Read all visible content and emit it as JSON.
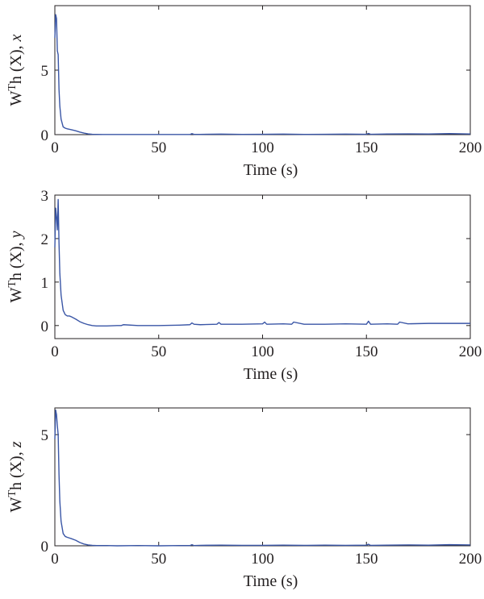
{
  "chart_data": [
    {
      "type": "line",
      "title": "",
      "xlabel": "Time (s)",
      "ylabel": {
        "base": "W",
        "sup": "T",
        "mid": "h (X), ",
        "var": "x"
      },
      "xlim": [
        0,
        200
      ],
      "ylim": [
        0,
        10
      ],
      "xticks": [
        0,
        50,
        100,
        150,
        200
      ],
      "yticks": [
        0,
        5
      ],
      "grid": false,
      "color": "#3a56a6",
      "series": [
        {
          "x": [
            0,
            0.4,
            0.8,
            1.2,
            1.6,
            2.0,
            2.4,
            3,
            4,
            5,
            6,
            8,
            10,
            12,
            14,
            16,
            18,
            20,
            25,
            30,
            40,
            50,
            60,
            65,
            66,
            67,
            70,
            80,
            90,
            100,
            110,
            120,
            130,
            140,
            150,
            151,
            152,
            160,
            170,
            180,
            190,
            200
          ],
          "y": [
            7.5,
            9.3,
            9.0,
            6.5,
            6.2,
            3.5,
            2.2,
            1.2,
            0.6,
            0.5,
            0.45,
            0.38,
            0.3,
            0.2,
            0.12,
            0.06,
            0.03,
            0.02,
            0.01,
            0.01,
            0.01,
            0.01,
            0.01,
            0.01,
            0.08,
            0.02,
            0.02,
            0.04,
            0.02,
            0.03,
            0.04,
            0.02,
            0.03,
            0.04,
            0.03,
            0.09,
            0.03,
            0.05,
            0.06,
            0.05,
            0.08,
            0.05
          ]
        }
      ]
    },
    {
      "type": "line",
      "title": "",
      "xlabel": "Time (s)",
      "ylabel": {
        "base": "W",
        "sup": "T",
        "mid": "h (X), ",
        "var": "y"
      },
      "xlim": [
        0,
        200
      ],
      "ylim": [
        -0.3,
        3
      ],
      "xticks": [
        0,
        50,
        100,
        150,
        200
      ],
      "yticks": [
        0,
        1,
        2,
        3
      ],
      "grid": false,
      "color": "#3a56a6",
      "series": [
        {
          "x": [
            0,
            0.4,
            0.8,
            1.2,
            1.6,
            2.0,
            2.4,
            3,
            4,
            5,
            6,
            7,
            8,
            10,
            12,
            14,
            16,
            18,
            20,
            25,
            30,
            32,
            33,
            40,
            50,
            60,
            65,
            66,
            67,
            70,
            78,
            79,
            80,
            90,
            100,
            101,
            102,
            110,
            114,
            115,
            120,
            130,
            140,
            150,
            151,
            152,
            160,
            165,
            166,
            170,
            180,
            190,
            200
          ],
          "y": [
            1.8,
            2.7,
            2.5,
            2.2,
            2.9,
            1.9,
            1.2,
            0.7,
            0.35,
            0.25,
            0.22,
            0.22,
            0.2,
            0.15,
            0.09,
            0.05,
            0.02,
            0.0,
            -0.01,
            -0.01,
            0.0,
            0.0,
            0.02,
            0.0,
            0.0,
            0.01,
            0.02,
            0.06,
            0.03,
            0.02,
            0.03,
            0.07,
            0.03,
            0.03,
            0.04,
            0.08,
            0.03,
            0.04,
            0.03,
            0.08,
            0.03,
            0.03,
            0.04,
            0.03,
            0.1,
            0.03,
            0.04,
            0.03,
            0.08,
            0.04,
            0.05,
            0.05,
            0.05
          ]
        }
      ]
    },
    {
      "type": "line",
      "title": "",
      "xlabel": "Time (s)",
      "ylabel": {
        "base": "W",
        "sup": "T",
        "mid": "h (X), ",
        "var": "z"
      },
      "xlim": [
        0,
        200
      ],
      "ylim": [
        0,
        6.2
      ],
      "xticks": [
        0,
        50,
        100,
        150,
        200
      ],
      "yticks": [
        0,
        5
      ],
      "grid": false,
      "color": "#3a56a6",
      "series": [
        {
          "x": [
            0,
            0.4,
            0.8,
            1.2,
            1.6,
            2.0,
            2.4,
            3,
            4,
            5,
            6,
            8,
            10,
            12,
            14,
            16,
            18,
            20,
            25,
            30,
            40,
            50,
            60,
            65,
            66,
            67,
            70,
            80,
            90,
            100,
            110,
            120,
            130,
            140,
            150,
            151,
            152,
            160,
            170,
            180,
            190,
            200
          ],
          "y": [
            4.8,
            6.1,
            5.9,
            5.4,
            5.0,
            3.2,
            2.0,
            1.1,
            0.55,
            0.42,
            0.38,
            0.32,
            0.25,
            0.15,
            0.08,
            0.04,
            0.02,
            0.01,
            0.01,
            0.0,
            0.01,
            0.0,
            0.01,
            0.01,
            0.05,
            0.01,
            0.02,
            0.03,
            0.02,
            0.02,
            0.03,
            0.02,
            0.03,
            0.02,
            0.03,
            0.07,
            0.02,
            0.03,
            0.04,
            0.03,
            0.05,
            0.04
          ]
        }
      ]
    }
  ]
}
